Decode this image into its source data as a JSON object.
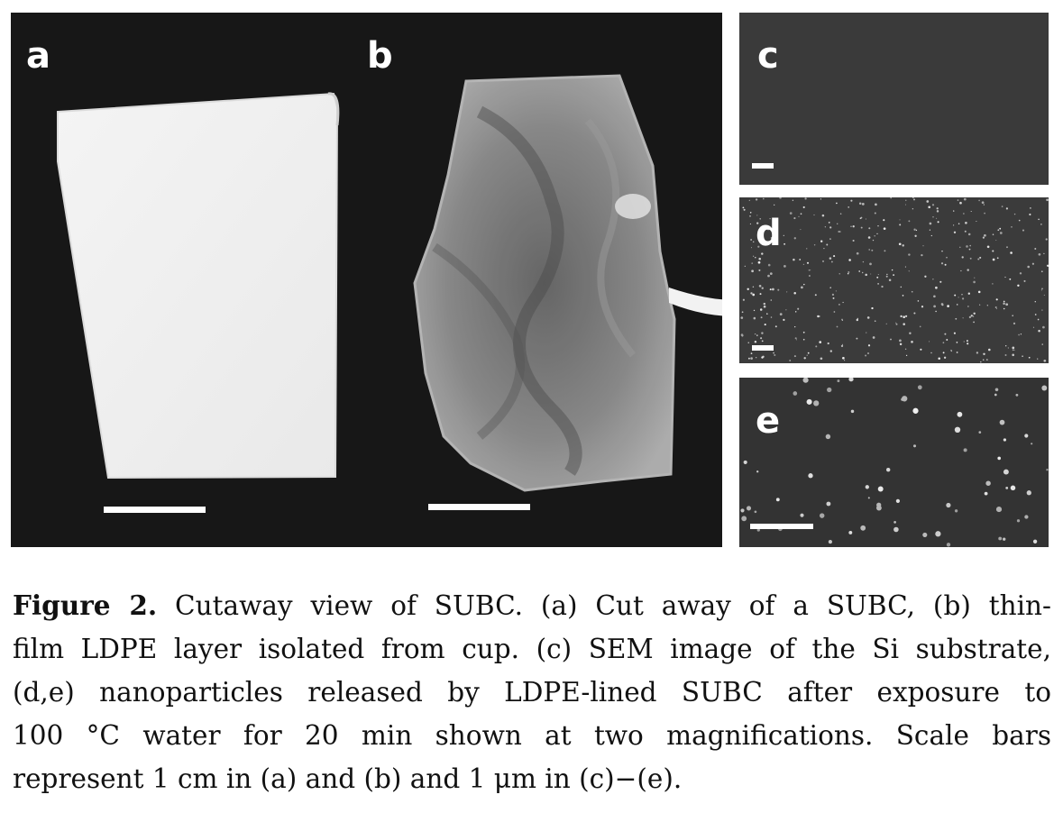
{
  "panels": {
    "a": {
      "label": "a"
    },
    "b": {
      "label": "b"
    },
    "c": {
      "label": "c"
    },
    "d": {
      "label": "d"
    },
    "e": {
      "label": "e"
    }
  },
  "caption": {
    "label": "Figure 2.",
    "lines": [
      " Cutaway view of SUBC. (a) Cut away of a SUBC, (b) thin-",
      "film LDPE layer isolated from cup. (c) SEM image of the Si substrate,",
      "(d,e) nanoparticles released by LDPE-lined SUBC after exposure to",
      "100 °C water for 20 min shown at two magnifications. Scale bars",
      "represent 1 cm in (a) and (b) and 1 μm in (c)−(e)."
    ]
  },
  "colors": {
    "photo_background": "#171717",
    "sem_background": "#3a3a3a",
    "label_color": "#ffffff"
  }
}
